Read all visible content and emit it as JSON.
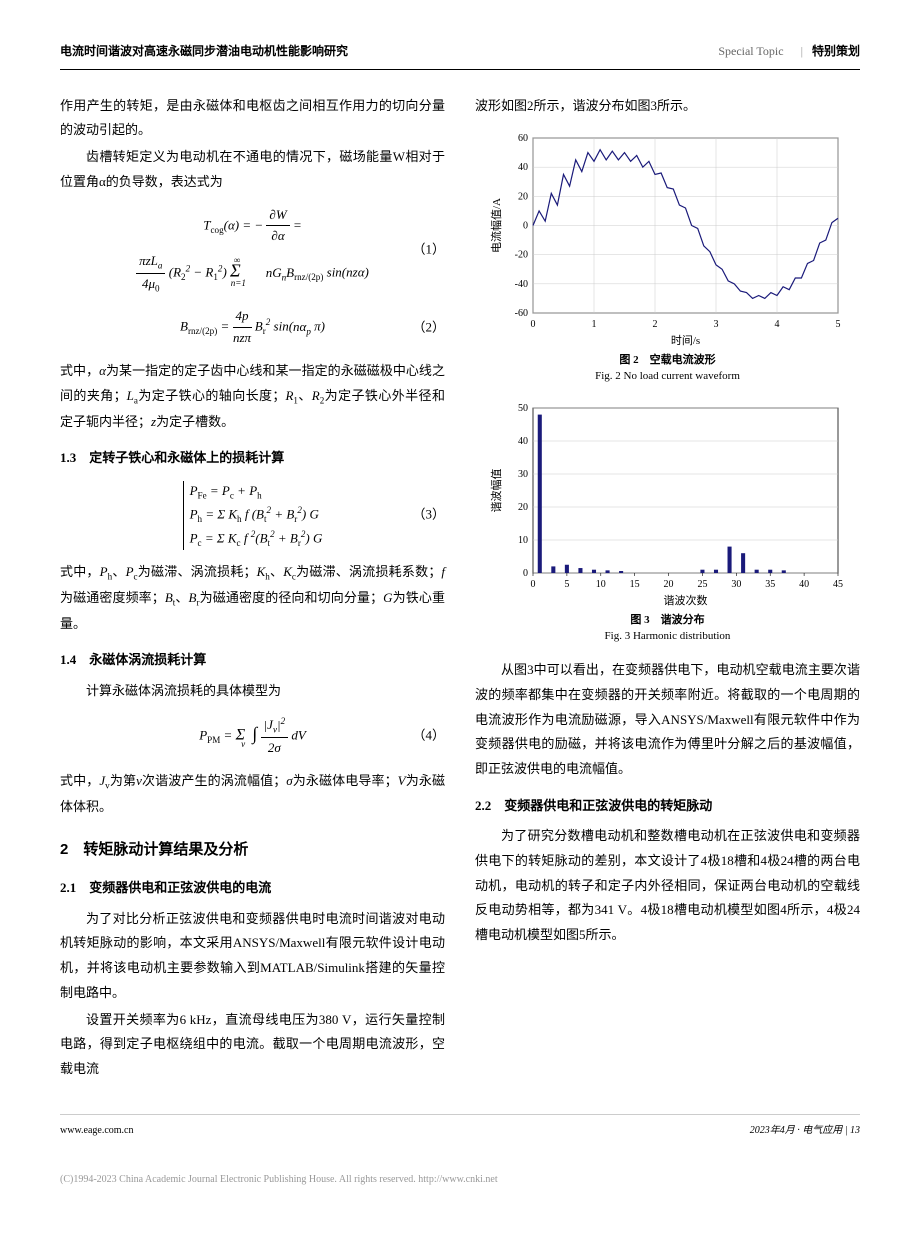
{
  "header": {
    "left": "电流时间谐波对高速永磁同步潜油电动机性能影响研究",
    "right_en": "Special Topic",
    "right_cn": "特别策划"
  },
  "left_col": {
    "p1": "作用产生的转矩，是由永磁体和电枢齿之间相互作用力的切向分量的波动引起的。",
    "p2": "齿槽转矩定义为电动机在不通电的情况下，磁场能量W相对于位置角α的负导数，表达式为",
    "eq1_line1": "T_cog(α) = −∂W/∂α =",
    "eq1_line2": "(π z L_a / 4μ₀)(R₂² − R₁²) Σ_{n=1}^{∞} n G_n B_{rnz/(2p)} sin(nzα)",
    "eq1_num": "（1）",
    "eq2": "B_{rnz/(2p)} = (4p / nzπ) B_r² sin(nα_p π)",
    "eq2_num": "（2）",
    "p3": "式中，α为某一指定的定子齿中心线和某一指定的永磁磁极中心线之间的夹角；L_a为定子铁心的轴向长度；R_1、R_2为定子铁心外半径和定子轭内半径；z为定子槽数。",
    "h13": "1.3　定转子铁心和永磁体上的损耗计算",
    "eq3_l1": "P_Fe = P_c + P_h",
    "eq3_l2": "P_h = Σ K_h f (B_t² + B_r²) G",
    "eq3_l3": "P_c = Σ K_c f² (B_t² + B_r²) G",
    "eq3_num": "（3）",
    "p4": "式中，P_h、P_c为磁滞、涡流损耗；K_h、K_c为磁滞、涡流损耗系数；f 为磁通密度频率；B_t、B_r为磁通密度的径向和切向分量；G为铁心重量。",
    "h14": "1.4　永磁体涡流损耗计算",
    "p5": "计算永磁体涡流损耗的具体模型为",
    "eq4": "P_PM = Σ_v ∫ |J_v|² / (2σ) dV",
    "eq4_num": "（4）",
    "p6": "式中，J_v为第v次谐波产生的涡流幅值；σ为永磁体电导率；V为永磁体体积。",
    "h2": "2　转矩脉动计算结果及分析",
    "h21": "2.1　变频器供电和正弦波供电的电流",
    "p7": "为了对比分析正弦波供电和变频器供电时电流时间谐波对电动机转矩脉动的影响，本文采用ANSYS/Maxwell有限元软件设计电动机，并将该电动机主要参数输入到MATLAB/Simulink搭建的矢量控制电路中。",
    "p8": "设置开关频率为6 kHz，直流母线电压为380 V，运行矢量控制电路，得到定子电枢绕组中的电流。截取一个电周期电流波形，空载电流"
  },
  "right_col": {
    "p1": "波形如图2所示，谐波分布如图3所示。",
    "fig2": {
      "type": "line",
      "caption_cn": "图 2　空载电流波形",
      "caption_en": "Fig. 2 No load current waveform",
      "xlabel": "时间/s",
      "ylabel": "电流幅值/A",
      "xlim": [
        0,
        5
      ],
      "ylim": [
        -60,
        60
      ],
      "xticks": [
        0,
        1,
        2,
        3,
        4,
        5
      ],
      "yticks": [
        -60,
        -40,
        -20,
        0,
        20,
        40,
        60
      ],
      "line_color": "#1a1a7a",
      "background_color": "#ffffff",
      "grid_color": "#cccccc",
      "line_width": 1.2,
      "data_x": [
        0,
        0.1,
        0.2,
        0.3,
        0.4,
        0.5,
        0.6,
        0.7,
        0.8,
        0.9,
        1.0,
        1.1,
        1.2,
        1.3,
        1.4,
        1.5,
        1.6,
        1.7,
        1.8,
        1.9,
        2.0,
        2.1,
        2.2,
        2.3,
        2.4,
        2.5,
        2.6,
        2.7,
        2.8,
        2.9,
        3.0,
        3.1,
        3.2,
        3.3,
        3.4,
        3.5,
        3.6,
        3.7,
        3.8,
        3.9,
        4.0,
        4.1,
        4.2,
        4.3,
        4.4,
        4.5,
        4.6,
        4.7,
        4.8,
        4.9,
        5.0
      ],
      "data_y": [
        0,
        10,
        3,
        22,
        14,
        35,
        27,
        45,
        37,
        50,
        44,
        52,
        45,
        51,
        45,
        50,
        44,
        48,
        40,
        44,
        35,
        36,
        26,
        25,
        14,
        12,
        0,
        -2,
        -14,
        -18,
        -27,
        -30,
        -38,
        -40,
        -45,
        -46,
        -50,
        -48,
        -50,
        -46,
        -48,
        -42,
        -44,
        -36,
        -36,
        -26,
        -24,
        -12,
        -10,
        2,
        5
      ]
    },
    "fig3": {
      "type": "bar",
      "caption_cn": "图 3　谐波分布",
      "caption_en": "Fig. 3 Harmonic distribution",
      "xlabel": "谐波次数",
      "ylabel": "谐波幅值",
      "xlim": [
        0,
        45
      ],
      "ylim": [
        0,
        50
      ],
      "xticks": [
        0,
        5,
        10,
        15,
        20,
        25,
        30,
        35,
        40,
        45
      ],
      "yticks": [
        0,
        10,
        20,
        30,
        40,
        50
      ],
      "bar_color": "#1a1a7a",
      "background_color": "#ffffff",
      "grid_color": "#cccccc",
      "bar_width": 0.6,
      "data_x": [
        1,
        3,
        5,
        7,
        9,
        11,
        13,
        25,
        27,
        29,
        31,
        33,
        35,
        37
      ],
      "data_y": [
        48,
        2,
        2.5,
        1.5,
        1,
        0.8,
        0.6,
        1,
        1,
        8,
        6,
        1,
        1,
        0.8
      ]
    },
    "p2": "从图3中可以看出，在变频器供电下，电动机空载电流主要次谐波的频率都集中在变频器的开关频率附近。将截取的一个电周期的电流波形作为电流励磁源，导入ANSYS/Maxwell有限元软件中作为变频器供电的励磁，并将该电流作为傅里叶分解之后的基波幅值，即正弦波供电的电流幅值。",
    "h22": "2.2　变频器供电和正弦波供电的转矩脉动",
    "p3": "为了研究分数槽电动机和整数槽电动机在正弦波供电和变频器供电下的转矩脉动的差别，本文设计了4极18槽和4极24槽的两台电动机，电动机的转子和定子内外径相同，保证两台电动机的空载线反电动势相等，都为341 V。4极18槽电动机模型如图4所示，4极24槽电动机模型如图5所示。"
  },
  "footer": {
    "left": "www.eage.com.cn",
    "right": "2023年4月 · 电气应用 | 13"
  },
  "watermark": "(C)1994-2023 China Academic Journal Electronic Publishing House. All rights reserved.    http://www.cnki.net"
}
